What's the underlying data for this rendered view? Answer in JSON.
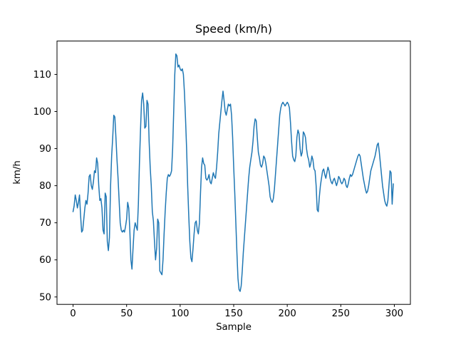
{
  "chart_data": {
    "type": "line",
    "title": "Speed (km/h)",
    "xlabel": "Sample",
    "ylabel": "km/h",
    "line_color": "#1f77b4",
    "xlim": [
      -15,
      315
    ],
    "ylim": [
      48,
      119
    ],
    "xticks": [
      0,
      50,
      100,
      150,
      200,
      250,
      300
    ],
    "yticks": [
      50,
      60,
      70,
      80,
      90,
      100,
      110
    ],
    "grid": false,
    "legend": "none",
    "x_start": 0,
    "x_step": 1,
    "values": [
      73,
      74.5,
      77.5,
      76,
      74,
      75.5,
      77.5,
      72,
      67.5,
      68,
      71,
      74,
      76,
      75,
      78,
      82.5,
      83,
      80,
      79,
      81,
      84,
      83.5,
      87.5,
      86,
      80,
      76,
      76.5,
      74,
      68,
      67,
      78,
      77,
      65,
      62.5,
      66,
      80,
      88,
      93,
      99,
      98.5,
      93,
      87,
      82,
      76,
      70,
      68,
      67.5,
      68,
      67.5,
      69,
      71,
      75.5,
      74,
      68,
      60,
      57.5,
      63,
      68,
      70,
      69,
      68,
      75,
      86,
      95,
      103,
      105,
      102,
      95.5,
      96,
      103,
      102,
      92,
      85,
      80,
      73,
      70.5,
      65,
      60,
      63,
      71,
      70,
      57,
      56.5,
      56,
      60,
      67,
      73,
      78,
      82,
      83,
      82.5,
      83,
      84,
      90,
      100,
      110,
      115.5,
      115,
      112,
      112.5,
      111.5,
      111,
      111.5,
      110,
      105,
      98,
      90,
      80,
      72,
      65,
      60.5,
      59.5,
      63,
      67,
      70,
      70.5,
      68,
      67,
      70,
      78,
      85,
      87.5,
      86,
      85.5,
      82,
      81.5,
      82,
      83,
      81,
      80.5,
      82,
      83.5,
      82.5,
      82,
      85,
      89,
      94,
      97,
      100,
      103,
      105.5,
      103,
      100,
      99,
      100.5,
      102,
      101.5,
      102,
      99,
      93,
      85,
      78,
      70,
      62,
      55,
      52,
      51.5,
      53,
      57,
      62,
      66,
      70,
      74,
      78,
      82,
      85,
      87,
      89,
      92,
      96,
      98,
      97.5,
      93,
      89,
      87.5,
      85.5,
      85,
      86,
      88,
      87.5,
      86,
      84,
      82,
      80,
      77,
      76,
      75.5,
      76.5,
      79,
      83,
      87,
      91,
      95,
      99,
      101,
      102,
      102.5,
      102,
      101.5,
      102,
      102.5,
      102,
      101,
      97,
      92,
      88,
      87,
      86.5,
      88,
      93,
      95,
      94,
      90,
      88,
      89,
      94.5,
      94,
      93,
      90,
      88,
      87,
      85,
      86,
      88,
      87,
      84.5,
      84,
      80,
      73.5,
      73,
      77,
      80,
      82,
      84,
      84.5,
      83,
      82,
      83.5,
      85,
      84,
      82,
      81,
      80.5,
      81.5,
      82,
      81,
      80,
      81,
      82.5,
      82,
      81,
      80.5,
      81,
      82,
      81.5,
      80,
      79.5,
      80.5,
      82,
      83,
      82.5,
      83,
      84,
      85,
      86,
      87,
      88,
      88.5,
      88,
      86,
      84,
      82,
      80.5,
      79,
      78,
      78.5,
      80,
      82,
      84,
      85,
      86,
      87,
      88,
      89.5,
      91,
      91.5,
      89,
      86,
      83,
      80,
      78,
      76,
      75,
      74.5,
      76,
      80,
      84,
      83.5,
      75,
      80.5
    ]
  }
}
